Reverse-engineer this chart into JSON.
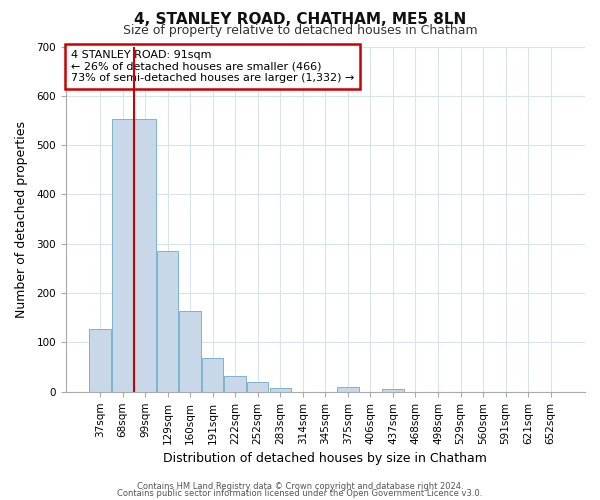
{
  "title": "4, STANLEY ROAD, CHATHAM, ME5 8LN",
  "subtitle": "Size of property relative to detached houses in Chatham",
  "xlabel": "Distribution of detached houses by size in Chatham",
  "ylabel": "Number of detached properties",
  "bar_labels": [
    "37sqm",
    "68sqm",
    "99sqm",
    "129sqm",
    "160sqm",
    "191sqm",
    "222sqm",
    "252sqm",
    "283sqm",
    "314sqm",
    "345sqm",
    "375sqm",
    "406sqm",
    "437sqm",
    "468sqm",
    "498sqm",
    "529sqm",
    "560sqm",
    "591sqm",
    "621sqm",
    "652sqm"
  ],
  "bar_values": [
    128,
    554,
    554,
    285,
    163,
    68,
    33,
    20,
    8,
    0,
    0,
    10,
    0,
    5,
    0,
    0,
    0,
    0,
    0,
    0,
    0
  ],
  "bar_color": "#c8d8e8",
  "bar_edge_color": "#7ab4d0",
  "ylim": [
    0,
    700
  ],
  "yticks": [
    0,
    100,
    200,
    300,
    400,
    500,
    600,
    700
  ],
  "annotation_title": "4 STANLEY ROAD: 91sqm",
  "annotation_line1": "← 26% of detached houses are smaller (466)",
  "annotation_line2": "73% of semi-detached houses are larger (1,332) →",
  "annotation_box_color": "#ffffff",
  "annotation_box_edge": "#cc0000",
  "footer_line1": "Contains HM Land Registry data © Crown copyright and database right 2024.",
  "footer_line2": "Contains public sector information licensed under the Open Government Licence v3.0.",
  "red_line_color": "#cc0000",
  "grid_color": "#d8e4ed",
  "background_color": "#ffffff"
}
